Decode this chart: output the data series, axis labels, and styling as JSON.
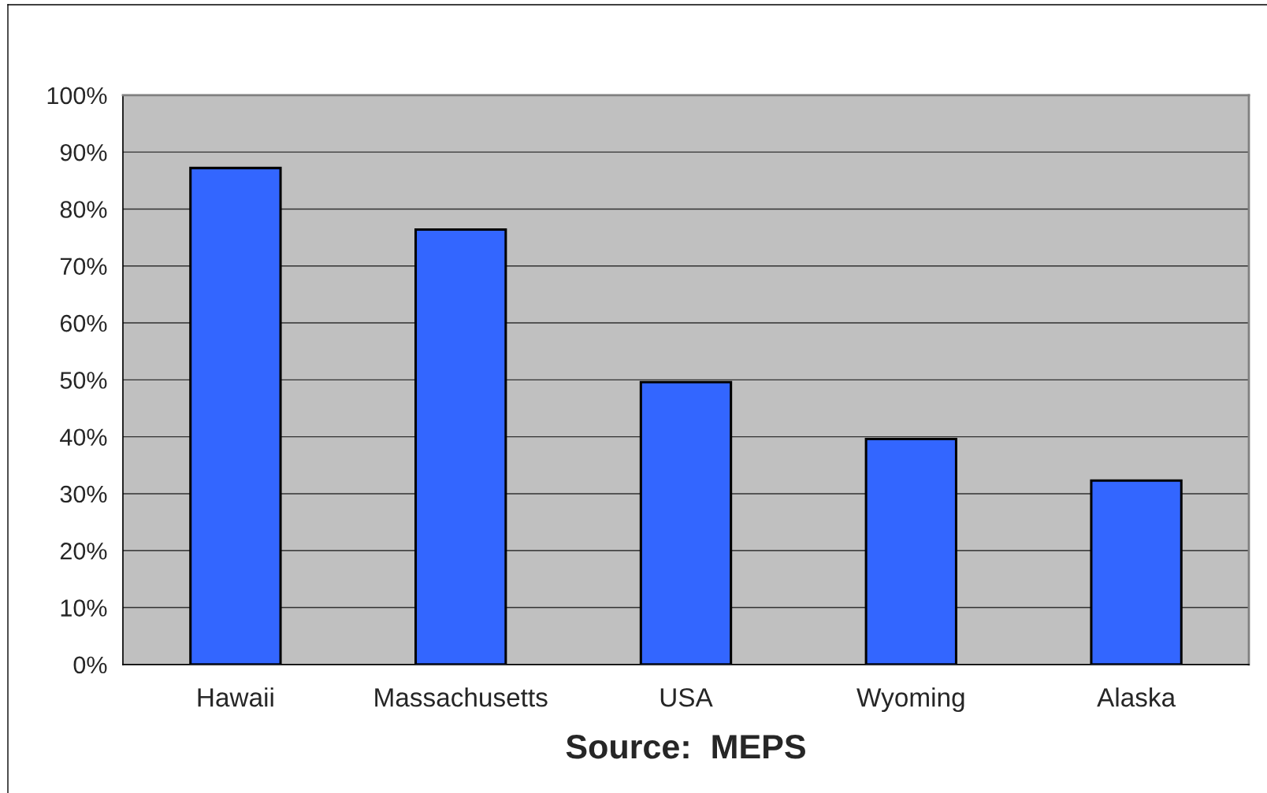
{
  "chart_data": {
    "type": "bar",
    "categories": [
      "Hawaii",
      "Massachusetts",
      "USA",
      "Wyoming",
      "Alaska"
    ],
    "series": [
      {
        "color": "#3366ff",
        "values": [
          87.2,
          76.4,
          49.6,
          39.6,
          32.3
        ]
      }
    ],
    "xlabel": "Source:  MEPS",
    "ylim": [
      0,
      100
    ],
    "yticks": [
      {
        "value": 0,
        "label": "0%"
      },
      {
        "value": 10,
        "label": "10%"
      },
      {
        "value": 20,
        "label": "20%"
      },
      {
        "value": 30,
        "label": "30%"
      },
      {
        "value": 40,
        "label": "40%"
      },
      {
        "value": 50,
        "label": "50%"
      },
      {
        "value": 60,
        "label": "60%"
      },
      {
        "value": 70,
        "label": "70%"
      },
      {
        "value": 80,
        "label": "80%"
      },
      {
        "value": 90,
        "label": "90%"
      },
      {
        "value": 100,
        "label": "100%"
      }
    ],
    "grid": "y"
  }
}
